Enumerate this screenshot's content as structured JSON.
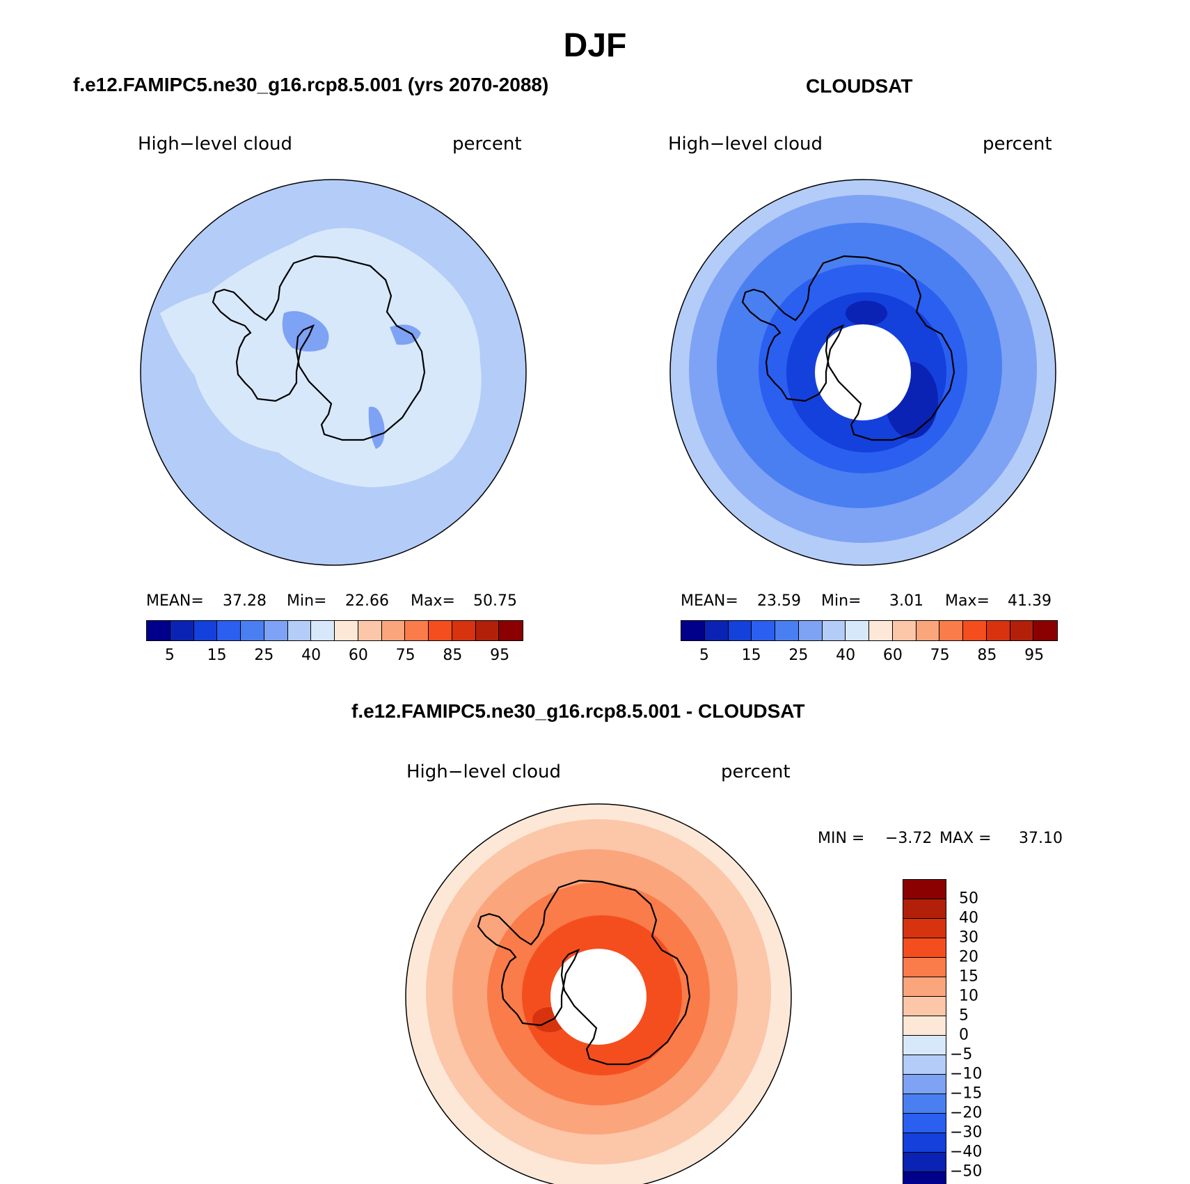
{
  "figure": {
    "title": "DJF"
  },
  "panels": {
    "left": {
      "heading": "f.e12.FAMIPC5.ne30_g16.rcp8.5.001 (yrs 2070-2088)",
      "variable": "High−level cloud",
      "units": "percent",
      "stats": {
        "mean_label": "MEAN=",
        "mean": "37.28",
        "min_label": "Min=",
        "min": "22.66",
        "max_label": "Max=",
        "max": "50.75"
      }
    },
    "right": {
      "heading": "CLOUDSAT",
      "variable": "High−level cloud",
      "units": "percent",
      "stats": {
        "mean_label": "MEAN=",
        "mean": "23.59",
        "min_label": "Min=",
        "min": "3.01",
        "max_label": "Max=",
        "max": "41.39"
      }
    },
    "diff": {
      "heading": "f.e12.FAMIPC5.ne30_g16.rcp8.5.001 - CLOUDSAT",
      "variable": "High−level cloud",
      "units": "percent",
      "stats": {
        "min_label": "MIN =",
        "min": "−3.72",
        "max_label": "MAX =",
        "max": "37.10"
      }
    }
  },
  "colorbars": {
    "abs": {
      "colors": [
        "#00008b",
        "#0a23b4",
        "#1440dc",
        "#2a5ff0",
        "#4a7ff2",
        "#7ea2f4",
        "#b4ccf8",
        "#d8e8fb",
        "#fde8d8",
        "#fcc6a8",
        "#fba57c",
        "#f97c4a",
        "#f44e1f",
        "#d6330e",
        "#b3200a",
        "#8b0000"
      ],
      "labels": [
        "5",
        "15",
        "25",
        "40",
        "60",
        "75",
        "85",
        "95"
      ]
    },
    "diff": {
      "colors": [
        "#00008b",
        "#0a23b4",
        "#1440dc",
        "#2a5ff0",
        "#4a7ff2",
        "#7ea2f4",
        "#b4ccf8",
        "#d8e8fb",
        "#fde8d8",
        "#fcc6a8",
        "#fba57c",
        "#f97c4a",
        "#f44e1f",
        "#d6330e",
        "#b3200a",
        "#8b0000"
      ],
      "labels": [
        "50",
        "40",
        "30",
        "20",
        "15",
        "10",
        "5",
        "0",
        "−5",
        "−10",
        "−15",
        "−20",
        "−30",
        "−40",
        "−50"
      ]
    }
  },
  "map_colors": {
    "model_base": "#b4ccf8",
    "model_light": "#d8e8fb",
    "model_mid": "#7ea2f4",
    "obs_outer": "#b4ccf8",
    "obs_ring1": "#7ea2f4",
    "obs_ring2": "#4a7ff2",
    "obs_ring3": "#2a5ff0",
    "obs_core": "#1440dc",
    "obs_dark": "#0a23b4",
    "diff_outer": "#fde8d8",
    "diff_ring1": "#fcc6a8",
    "diff_ring2": "#fba57c",
    "diff_ring3": "#f97c4a",
    "diff_core": "#f44e1f",
    "diff_dark": "#d6330e",
    "coast": "#000000"
  }
}
